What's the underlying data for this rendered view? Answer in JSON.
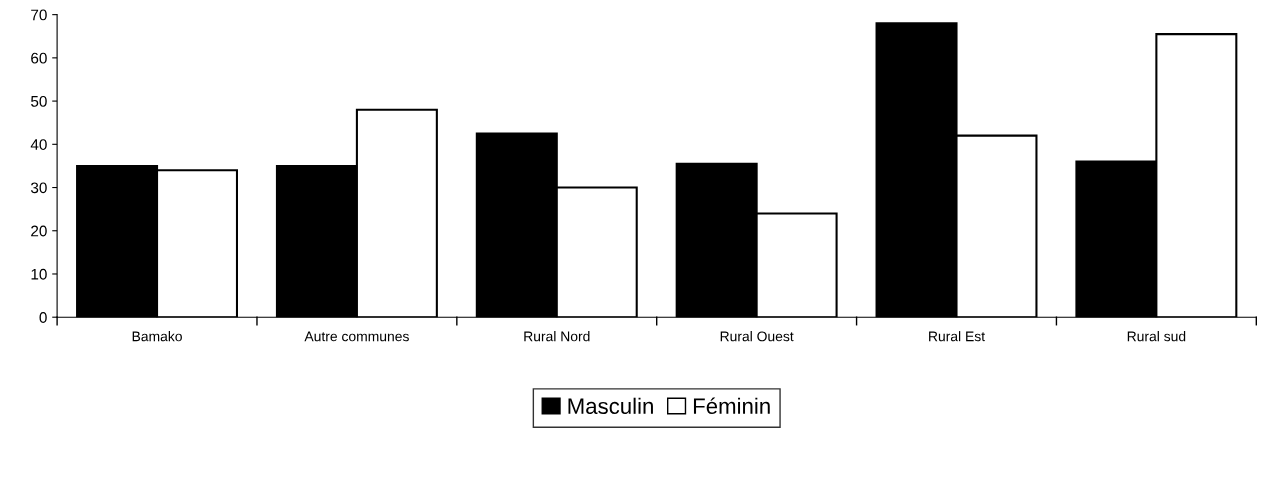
{
  "chart_data": {
    "type": "bar",
    "categories": [
      "Bamako",
      "Autre communes",
      "Rural Nord",
      "Rural Ouest",
      "Rural Est",
      "Rural sud"
    ],
    "series": [
      {
        "name": "Masculin",
        "color": "#000000",
        "values": [
          35,
          35,
          42.5,
          35.5,
          68,
          36
        ]
      },
      {
        "name": "Féminin",
        "color": "#ffffff",
        "values": [
          34,
          48,
          30,
          24,
          42,
          65.5
        ]
      }
    ],
    "ylim": [
      0,
      70
    ],
    "yticks": [
      0,
      10,
      20,
      30,
      40,
      50,
      60,
      70
    ],
    "grid": false,
    "legend": "bottom"
  }
}
